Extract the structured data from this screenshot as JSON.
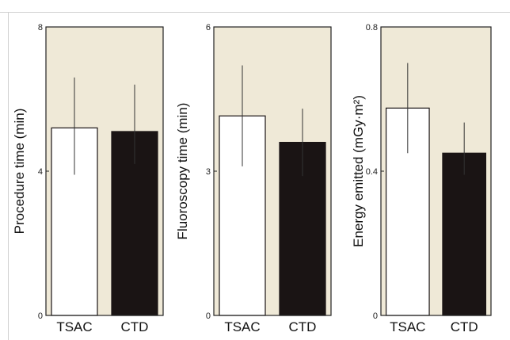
{
  "chart_data": [
    {
      "type": "bar",
      "categories": [
        "TSAC",
        "CTD"
      ],
      "values": [
        5.2,
        5.1
      ],
      "error_high": [
        6.6,
        6.4
      ],
      "error_low": [
        3.9,
        4.2
      ],
      "ylabel": "Procedure time (min)",
      "ylim": [
        0,
        8
      ],
      "yticks": [
        "0",
        "4",
        "8"
      ],
      "grid": false,
      "legend": "none"
    },
    {
      "type": "bar",
      "categories": [
        "TSAC",
        "CTD"
      ],
      "values": [
        4.15,
        3.6
      ],
      "error_high": [
        5.2,
        4.3
      ],
      "error_low": [
        3.1,
        2.9
      ],
      "ylabel": "Fluoroscopy time (min)",
      "ylim": [
        0,
        6
      ],
      "yticks": [
        "0",
        "3",
        "6"
      ],
      "grid": false,
      "legend": "none"
    },
    {
      "type": "bar",
      "categories": [
        "TSAC",
        "CTD"
      ],
      "values": [
        0.575,
        0.45
      ],
      "error_high": [
        0.7,
        0.535
      ],
      "error_low": [
        0.45,
        0.39
      ],
      "ylabel": "Energy emitted (mGy·m²)",
      "ylim": [
        0,
        0.8
      ],
      "yticks": [
        "0",
        "0.4",
        "0.8"
      ],
      "grid": false,
      "legend": "none"
    }
  ],
  "colors": {
    "plot_background": "#efe9d7",
    "bar_tsac": "#ffffff",
    "bar_ctd": "#1a1414",
    "axis": "#222222",
    "error_bar": "#333333"
  }
}
